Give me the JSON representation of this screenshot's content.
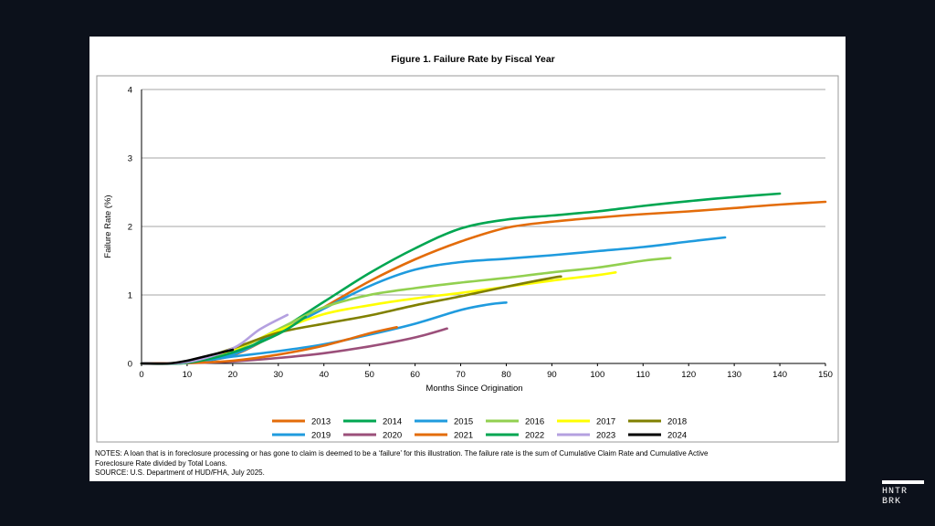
{
  "chart_data": {
    "type": "line",
    "title": "Figure 1. Failure Rate by Fiscal Year",
    "xlabel": "Months Since Origination",
    "ylabel": "Failure Rate (%)",
    "xlim": [
      0,
      150
    ],
    "ylim": [
      0,
      4
    ],
    "xticks": [
      "0",
      "10",
      "20",
      "30",
      "40",
      "50",
      "60",
      "70",
      "80",
      "90",
      "100",
      "110",
      "120",
      "130",
      "140",
      "150"
    ],
    "yticks": [
      "0",
      "1",
      "2",
      "3",
      "4"
    ],
    "grid": "horizontal",
    "legend_position": "bottom",
    "series": [
      {
        "name": "2013",
        "color": "#e36c0a",
        "points": [
          [
            0,
            0
          ],
          [
            10,
            0.01
          ],
          [
            20,
            0.12
          ],
          [
            30,
            0.45
          ],
          [
            40,
            0.82
          ],
          [
            50,
            1.2
          ],
          [
            60,
            1.52
          ],
          [
            70,
            1.78
          ],
          [
            80,
            1.98
          ],
          [
            90,
            2.07
          ],
          [
            100,
            2.13
          ],
          [
            110,
            2.18
          ],
          [
            120,
            2.22
          ],
          [
            130,
            2.27
          ],
          [
            140,
            2.32
          ],
          [
            150,
            2.36
          ]
        ]
      },
      {
        "name": "2014",
        "color": "#00a651",
        "points": [
          [
            0,
            0
          ],
          [
            10,
            0.01
          ],
          [
            20,
            0.13
          ],
          [
            30,
            0.48
          ],
          [
            40,
            0.9
          ],
          [
            50,
            1.32
          ],
          [
            60,
            1.68
          ],
          [
            70,
            1.97
          ],
          [
            80,
            2.1
          ],
          [
            90,
            2.16
          ],
          [
            100,
            2.22
          ],
          [
            110,
            2.3
          ],
          [
            120,
            2.37
          ],
          [
            130,
            2.43
          ],
          [
            140,
            2.48
          ]
        ]
      },
      {
        "name": "2015",
        "color": "#1f9bde",
        "points": [
          [
            0,
            0
          ],
          [
            10,
            0.01
          ],
          [
            20,
            0.13
          ],
          [
            30,
            0.45
          ],
          [
            40,
            0.8
          ],
          [
            50,
            1.13
          ],
          [
            60,
            1.37
          ],
          [
            70,
            1.48
          ],
          [
            80,
            1.53
          ],
          [
            90,
            1.58
          ],
          [
            100,
            1.64
          ],
          [
            110,
            1.7
          ],
          [
            120,
            1.78
          ],
          [
            128,
            1.84
          ]
        ]
      },
      {
        "name": "2016",
        "color": "#92d050",
        "points": [
          [
            0,
            0
          ],
          [
            10,
            0.02
          ],
          [
            20,
            0.18
          ],
          [
            30,
            0.5
          ],
          [
            40,
            0.82
          ],
          [
            50,
            1.0
          ],
          [
            60,
            1.1
          ],
          [
            70,
            1.18
          ],
          [
            80,
            1.25
          ],
          [
            90,
            1.33
          ],
          [
            100,
            1.4
          ],
          [
            110,
            1.5
          ],
          [
            116,
            1.54
          ]
        ]
      },
      {
        "name": "2017",
        "color": "#ffff00",
        "points": [
          [
            0,
            0
          ],
          [
            10,
            0.02
          ],
          [
            20,
            0.2
          ],
          [
            30,
            0.48
          ],
          [
            40,
            0.72
          ],
          [
            50,
            0.85
          ],
          [
            60,
            0.95
          ],
          [
            70,
            1.03
          ],
          [
            80,
            1.12
          ],
          [
            90,
            1.21
          ],
          [
            100,
            1.29
          ],
          [
            104,
            1.33
          ]
        ]
      },
      {
        "name": "2018",
        "color": "#808000",
        "points": [
          [
            0,
            0
          ],
          [
            10,
            0.02
          ],
          [
            20,
            0.22
          ],
          [
            30,
            0.45
          ],
          [
            40,
            0.58
          ],
          [
            50,
            0.7
          ],
          [
            60,
            0.85
          ],
          [
            70,
            0.98
          ],
          [
            80,
            1.12
          ],
          [
            90,
            1.25
          ],
          [
            92,
            1.27
          ]
        ]
      },
      {
        "name": "2019",
        "color": "#1f9bde",
        "points": [
          [
            0,
            0
          ],
          [
            10,
            0.01
          ],
          [
            20,
            0.1
          ],
          [
            30,
            0.18
          ],
          [
            40,
            0.28
          ],
          [
            50,
            0.42
          ],
          [
            60,
            0.58
          ],
          [
            70,
            0.78
          ],
          [
            76,
            0.86
          ],
          [
            80,
            0.89
          ]
        ]
      },
      {
        "name": "2020",
        "color": "#9b4f7a",
        "points": [
          [
            0,
            0
          ],
          [
            10,
            0.005
          ],
          [
            20,
            0.03
          ],
          [
            30,
            0.08
          ],
          [
            40,
            0.15
          ],
          [
            50,
            0.25
          ],
          [
            60,
            0.38
          ],
          [
            67,
            0.51
          ]
        ]
      },
      {
        "name": "2021",
        "color": "#e36c0a",
        "points": [
          [
            0,
            0
          ],
          [
            10,
            0.005
          ],
          [
            20,
            0.04
          ],
          [
            30,
            0.13
          ],
          [
            40,
            0.26
          ],
          [
            50,
            0.44
          ],
          [
            56,
            0.53
          ]
        ]
      },
      {
        "name": "2022",
        "color": "#00a651",
        "points": [
          [
            0,
            0
          ],
          [
            10,
            0.01
          ],
          [
            20,
            0.16
          ],
          [
            30,
            0.43
          ],
          [
            36,
            0.68
          ]
        ]
      },
      {
        "name": "2023",
        "color": "#b4a0e0",
        "points": [
          [
            0,
            0
          ],
          [
            10,
            0.02
          ],
          [
            20,
            0.22
          ],
          [
            26,
            0.5
          ],
          [
            32,
            0.71
          ]
        ]
      },
      {
        "name": "2024",
        "color": "#000000",
        "points": [
          [
            0,
            0
          ],
          [
            6,
            0
          ],
          [
            10,
            0.04
          ],
          [
            15,
            0.12
          ],
          [
            20,
            0.2
          ]
        ]
      }
    ]
  },
  "notes": {
    "line1": "NOTES: A loan that is in foreclosure processing or has gone to claim is deemed to be a ‘failure’ for this illustration.   The failure rate is the sum of Cumulative Claim Rate and Cumulative Active",
    "line2": "Foreclosure Rate divided by Total Loans.",
    "line3": "SOURCE: U.S. Department of HUD/FHA, July 2025."
  },
  "brand": {
    "line1": "HNTR",
    "line2": "BRK"
  }
}
